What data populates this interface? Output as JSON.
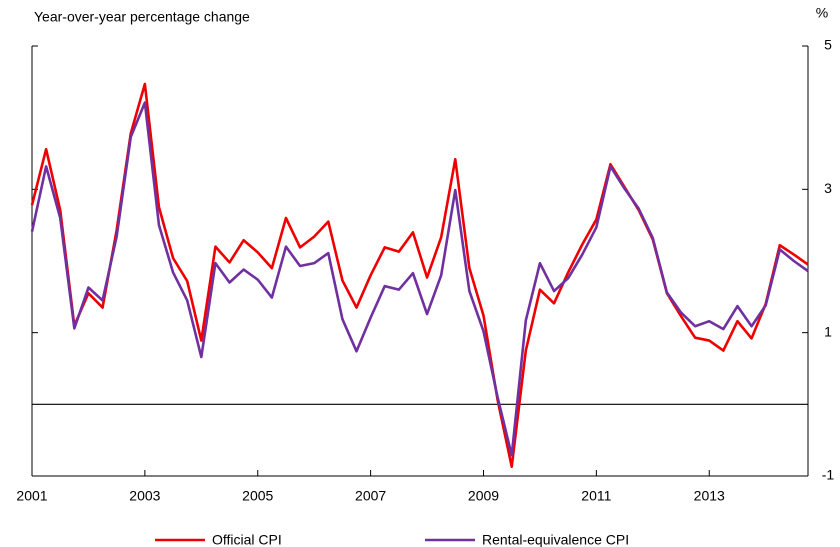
{
  "chart_data": {
    "type": "line",
    "y_label": "Year-over-year percentage change",
    "y2_label": "%",
    "x": [
      2001,
      2001.25,
      2001.5,
      2001.75,
      2002,
      2002.25,
      2002.5,
      2002.75,
      2003,
      2003.25,
      2003.5,
      2003.75,
      2004,
      2004.25,
      2004.5,
      2004.75,
      2005,
      2005.25,
      2005.5,
      2005.75,
      2006,
      2006.25,
      2006.5,
      2006.75,
      2007,
      2007.25,
      2007.5,
      2007.75,
      2008,
      2008.25,
      2008.5,
      2008.75,
      2009,
      2009.25,
      2009.5,
      2009.75,
      2010,
      2010.25,
      2010.5,
      2010.75,
      2011,
      2011.25,
      2011.5,
      2011.75,
      2012,
      2012.25,
      2012.5,
      2012.75,
      2013,
      2013.25,
      2013.5,
      2013.75,
      2014,
      2014.25,
      2014.5,
      2014.75
    ],
    "series": [
      {
        "name": "Official CPI",
        "color": "#ee0000",
        "values": [
          2.78,
          3.56,
          2.71,
          1.1,
          1.55,
          1.35,
          2.43,
          3.78,
          4.47,
          2.75,
          2.04,
          1.72,
          0.89,
          2.2,
          1.98,
          2.29,
          2.12,
          1.9,
          2.6,
          2.19,
          2.34,
          2.55,
          1.73,
          1.35,
          1.8,
          2.19,
          2.13,
          2.4,
          1.77,
          2.33,
          3.42,
          1.9,
          1.24,
          0.06,
          -0.87,
          0.75,
          1.6,
          1.41,
          1.84,
          2.23,
          2.58,
          3.35,
          3.03,
          2.71,
          2.3,
          1.55,
          1.23,
          0.93,
          0.89,
          0.75,
          1.16,
          0.92,
          1.4,
          2.22,
          2.09,
          1.95
        ]
      },
      {
        "name": "Rental-equivalence CPI",
        "color": "#7030a0",
        "values": [
          2.41,
          3.32,
          2.6,
          1.06,
          1.63,
          1.45,
          2.34,
          3.73,
          4.21,
          2.5,
          1.84,
          1.45,
          0.66,
          1.97,
          1.7,
          1.88,
          1.74,
          1.49,
          2.2,
          1.93,
          1.97,
          2.11,
          1.19,
          0.74,
          1.21,
          1.65,
          1.6,
          1.83,
          1.26,
          1.8,
          2.99,
          1.58,
          1.02,
          0.1,
          -0.71,
          1.17,
          1.97,
          1.58,
          1.76,
          2.09,
          2.47,
          3.32,
          3.01,
          2.73,
          2.32,
          1.56,
          1.28,
          1.09,
          1.16,
          1.05,
          1.37,
          1.09,
          1.38,
          2.16,
          2.0,
          1.86
        ]
      }
    ],
    "xlim": [
      2001,
      2014.75
    ],
    "xticks": [
      2001,
      2003,
      2005,
      2007,
      2009,
      2011,
      2013
    ],
    "ylim": [
      -1,
      5
    ],
    "yticks": [
      -1,
      1,
      3,
      5
    ],
    "legend": "bottom"
  }
}
